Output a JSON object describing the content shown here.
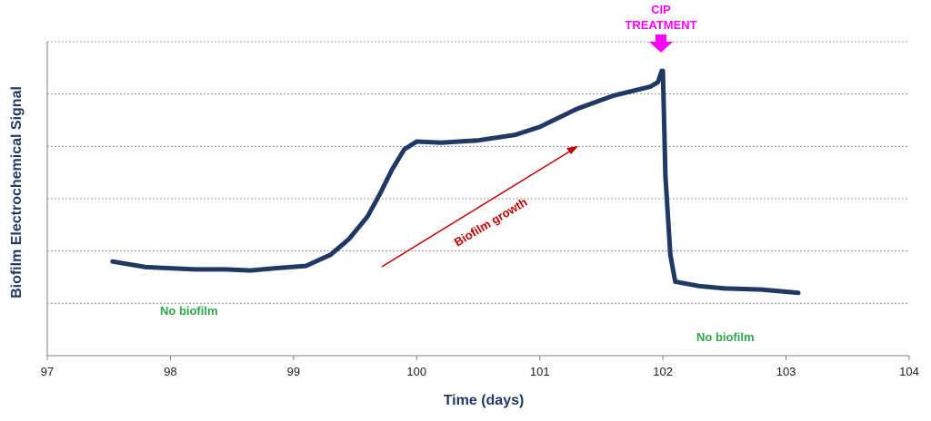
{
  "chart_data": {
    "type": "line",
    "title": "",
    "xlabel": "Time (days)",
    "ylabel": "Biofilm Electrochemical Signal",
    "xlim": [
      97,
      104
    ],
    "xticks": [
      "97",
      "98",
      "99",
      "100",
      "101",
      "102",
      "103",
      "104"
    ],
    "grid": "horizontal dashed",
    "colors": {
      "line": "#1f3864",
      "grid": "#7f7f7f",
      "axis": "#7f7f7f",
      "axis_title": "#1f3864",
      "no_biofilm": "#2aa84a",
      "growth": "#c00000",
      "cip": "#ff00ff"
    },
    "series": [
      {
        "x": [
          97.53,
          97.8,
          98.0,
          98.2,
          98.45,
          98.65,
          98.85,
          99.1,
          99.3,
          99.45,
          99.6,
          99.7,
          99.8,
          99.9,
          100.0,
          100.2,
          100.5,
          100.8,
          101.0,
          101.3,
          101.6,
          101.9,
          101.96,
          101.99,
          102.0,
          102.02,
          102.06,
          102.1,
          102.3,
          102.5,
          102.8,
          103.1
        ],
        "y": [
          0.42,
          0.395,
          0.39,
          0.385,
          0.385,
          0.38,
          0.39,
          0.4,
          0.45,
          0.52,
          0.62,
          0.72,
          0.83,
          0.92,
          0.955,
          0.95,
          0.96,
          0.985,
          1.02,
          1.1,
          1.16,
          1.2,
          1.22,
          1.27,
          1.27,
          0.8,
          0.45,
          0.33,
          0.31,
          0.3,
          0.295,
          0.28
        ]
      }
    ],
    "annotations": {
      "no_biofilm_left": "No biofilm",
      "no_biofilm_right": "No biofilm",
      "biofilm_growth": "Biofilm growth",
      "cip_line1": "CIP",
      "cip_line2": "TREATMENT"
    }
  }
}
